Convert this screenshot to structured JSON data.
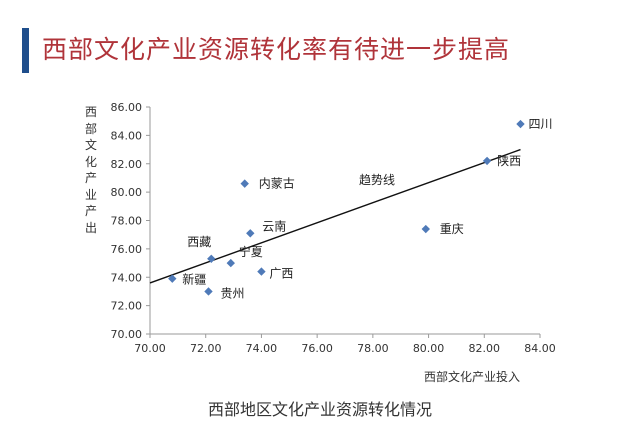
{
  "page": {
    "title": "西部文化产业资源转化率有待进一步提高",
    "caption": "西部地区文化产业资源转化情况",
    "colors": {
      "accent_bar": "#1f4e8c",
      "title": "#b0343a",
      "marker": "#4f7ab8"
    }
  },
  "chart_data": {
    "type": "scatter",
    "xlabel": "西部文化产业投入",
    "ylabel": "西部文化产业产出",
    "xlim": [
      70,
      84
    ],
    "ylim": [
      70,
      86
    ],
    "x_ticks": [
      "70.00",
      "72.00",
      "74.00",
      "76.00",
      "78.00",
      "80.00",
      "82.00",
      "84.00"
    ],
    "y_ticks": [
      "70.00",
      "72.00",
      "74.00",
      "76.00",
      "78.00",
      "80.00",
      "82.00",
      "84.00",
      "86.00"
    ],
    "grid": false,
    "points": [
      {
        "label": "四川",
        "x": 83.3,
        "y": 84.8
      },
      {
        "label": "陕西",
        "x": 82.1,
        "y": 82.2
      },
      {
        "label": "内蒙古",
        "x": 73.4,
        "y": 80.6
      },
      {
        "label": "重庆",
        "x": 79.9,
        "y": 77.4
      },
      {
        "label": "云南",
        "x": 73.6,
        "y": 77.1
      },
      {
        "label": "西藏",
        "x": 72.2,
        "y": 75.3
      },
      {
        "label": "宁夏",
        "x": 72.9,
        "y": 75.0
      },
      {
        "label": "广西",
        "x": 74.0,
        "y": 74.4
      },
      {
        "label": "新疆",
        "x": 70.8,
        "y": 73.9
      },
      {
        "label": "贵州",
        "x": 72.1,
        "y": 73.0
      }
    ],
    "trendline": {
      "label": "趋势线",
      "start": {
        "x": 70.0,
        "y": 73.6
      },
      "end": {
        "x": 83.3,
        "y": 83.0
      }
    }
  }
}
